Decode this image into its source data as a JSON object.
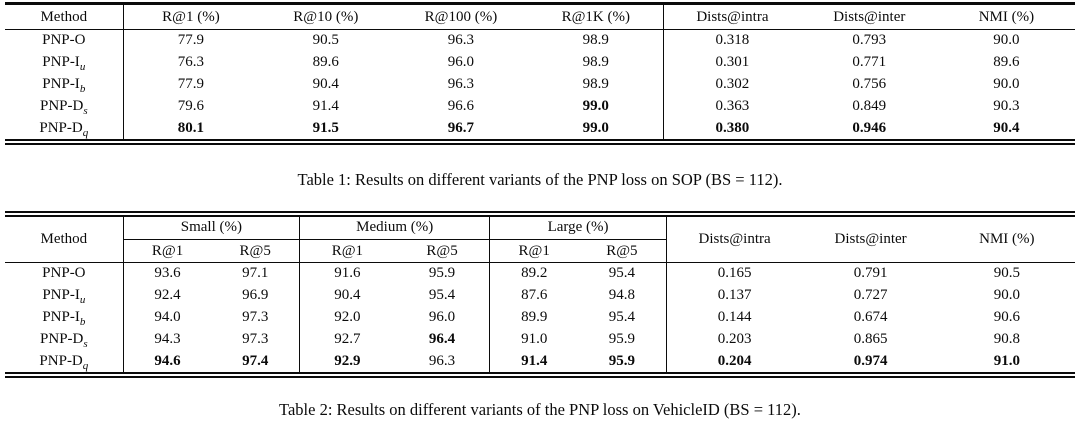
{
  "page": {
    "background": "#ffffff",
    "text_color": "#0b0b0b"
  },
  "tables": [
    {
      "caption": "Table 1: Results on different variants of the PNP loss on SOP (BS = 112).",
      "header": {
        "method_label": "Method",
        "columns": [
          "R@1 (%)",
          "R@10 (%)",
          "R@100 (%)",
          "R@1K (%)",
          "Dists@intra",
          "Dists@inter",
          "NMI (%)"
        ]
      },
      "rows": [
        {
          "method_base": "PNP-O",
          "method_sub": "",
          "cells": [
            {
              "t": "77.9"
            },
            {
              "t": "90.5"
            },
            {
              "t": "96.3"
            },
            {
              "t": "98.9"
            },
            {
              "t": "0.318"
            },
            {
              "t": "0.793"
            },
            {
              "t": "90.0"
            }
          ]
        },
        {
          "method_base": "PNP-I",
          "method_sub": "u",
          "cells": [
            {
              "t": "76.3"
            },
            {
              "t": "89.6"
            },
            {
              "t": "96.0"
            },
            {
              "t": "98.9"
            },
            {
              "t": "0.301"
            },
            {
              "t": "0.771"
            },
            {
              "t": "89.6"
            }
          ]
        },
        {
          "method_base": "PNP-I",
          "method_sub": "b",
          "cells": [
            {
              "t": "77.9"
            },
            {
              "t": "90.4"
            },
            {
              "t": "96.3"
            },
            {
              "t": "98.9"
            },
            {
              "t": "0.302"
            },
            {
              "t": "0.756"
            },
            {
              "t": "90.0"
            }
          ]
        },
        {
          "method_base": "PNP-D",
          "method_sub": "s",
          "cells": [
            {
              "t": "79.6"
            },
            {
              "t": "91.4"
            },
            {
              "t": "96.6"
            },
            {
              "t": "99.0",
              "b": true
            },
            {
              "t": "0.363"
            },
            {
              "t": "0.849"
            },
            {
              "t": "90.3"
            }
          ]
        },
        {
          "method_base": "PNP-D",
          "method_sub": "q",
          "cells": [
            {
              "t": "80.1",
              "b": true
            },
            {
              "t": "91.5",
              "b": true
            },
            {
              "t": "96.7",
              "b": true
            },
            {
              "t": "99.0",
              "b": true
            },
            {
              "t": "0.380",
              "b": true
            },
            {
              "t": "0.946",
              "b": true
            },
            {
              "t": "90.4",
              "b": true
            }
          ]
        }
      ]
    },
    {
      "caption": "Table 2: Results on different variants of the PNP loss on VehicleID (BS = 112).",
      "header": {
        "method_label": "Method",
        "groups": [
          {
            "label": "Small (%)",
            "cols": [
              "R@1",
              "R@5"
            ]
          },
          {
            "label": "Medium (%)",
            "cols": [
              "R@1",
              "R@5"
            ]
          },
          {
            "label": "Large (%)",
            "cols": [
              "R@1",
              "R@5"
            ]
          }
        ],
        "singles": [
          "Dists@intra",
          "Dists@inter",
          "NMI (%)"
        ]
      },
      "rows": [
        {
          "method_base": "PNP-O",
          "method_sub": "",
          "cells": [
            {
              "t": "93.6"
            },
            {
              "t": "97.1"
            },
            {
              "t": "91.6"
            },
            {
              "t": "95.9"
            },
            {
              "t": "89.2"
            },
            {
              "t": "95.4"
            },
            {
              "t": "0.165"
            },
            {
              "t": "0.791"
            },
            {
              "t": "90.5"
            }
          ]
        },
        {
          "method_base": "PNP-I",
          "method_sub": "u",
          "cells": [
            {
              "t": "92.4"
            },
            {
              "t": "96.9"
            },
            {
              "t": "90.4"
            },
            {
              "t": "95.4"
            },
            {
              "t": "87.6"
            },
            {
              "t": "94.8"
            },
            {
              "t": "0.137"
            },
            {
              "t": "0.727"
            },
            {
              "t": "90.0"
            }
          ]
        },
        {
          "method_base": "PNP-I",
          "method_sub": "b",
          "cells": [
            {
              "t": "94.0"
            },
            {
              "t": "97.3"
            },
            {
              "t": "92.0"
            },
            {
              "t": "96.0"
            },
            {
              "t": "89.9"
            },
            {
              "t": "95.4"
            },
            {
              "t": "0.144"
            },
            {
              "t": "0.674"
            },
            {
              "t": "90.6"
            }
          ]
        },
        {
          "method_base": "PNP-D",
          "method_sub": "s",
          "cells": [
            {
              "t": "94.3"
            },
            {
              "t": "97.3"
            },
            {
              "t": "92.7"
            },
            {
              "t": "96.4",
              "b": true
            },
            {
              "t": "91.0"
            },
            {
              "t": "95.9"
            },
            {
              "t": "0.203"
            },
            {
              "t": "0.865"
            },
            {
              "t": "90.8"
            }
          ]
        },
        {
          "method_base": "PNP-D",
          "method_sub": "q",
          "cells": [
            {
              "t": "94.6",
              "b": true
            },
            {
              "t": "97.4",
              "b": true
            },
            {
              "t": "92.9",
              "b": true
            },
            {
              "t": "96.3"
            },
            {
              "t": "91.4",
              "b": true
            },
            {
              "t": "95.9",
              "b": true
            },
            {
              "t": "0.204",
              "b": true
            },
            {
              "t": "0.974",
              "b": true
            },
            {
              "t": "91.0",
              "b": true
            }
          ]
        }
      ]
    }
  ]
}
